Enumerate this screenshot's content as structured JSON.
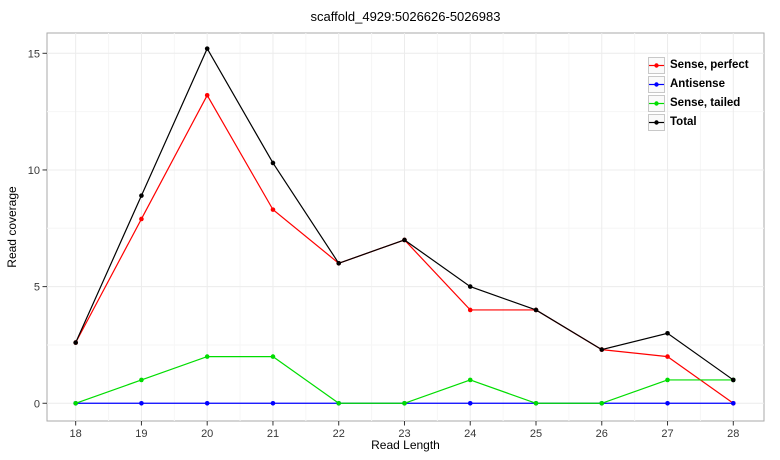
{
  "chart_data": {
    "type": "line",
    "title": "scaffold_4929:5026626-5026983",
    "xlabel": "Read Length",
    "ylabel": "Read coverage",
    "x": [
      18,
      19,
      20,
      21,
      22,
      23,
      24,
      25,
      26,
      27,
      28
    ],
    "xticks": [
      18,
      19,
      20,
      21,
      22,
      23,
      24,
      25,
      26,
      27,
      28
    ],
    "yticks": [
      0,
      5,
      10,
      15
    ],
    "xlim": [
      17.564,
      28.467
    ],
    "ylim": [
      -0.76,
      15.87
    ],
    "grid": "major-and-minor",
    "legend_position": "inside-top-right",
    "series": [
      {
        "name": "Sense, perfect",
        "color": "#ff0000",
        "values": [
          2.6,
          7.9,
          13.2,
          8.3,
          6.0,
          7.0,
          4.0,
          4.0,
          2.3,
          2.0,
          0.0
        ]
      },
      {
        "name": "Antisense",
        "color": "#0000ff",
        "values": [
          0,
          0,
          0,
          0,
          0,
          0,
          0,
          0,
          0,
          0,
          0
        ]
      },
      {
        "name": "Sense, tailed",
        "color": "#00dd00",
        "values": [
          0.0,
          1.0,
          2.0,
          2.0,
          0.0,
          0.0,
          1.0,
          0.0,
          0.0,
          1.0,
          1.0
        ]
      },
      {
        "name": "Total",
        "color": "#000000",
        "values": [
          2.6,
          8.9,
          15.2,
          10.3,
          6.0,
          7.0,
          5.0,
          4.0,
          2.3,
          3.0,
          1.0
        ]
      }
    ],
    "colors": {
      "grid_major": "#ececec",
      "grid_minor": "#f6f6f6",
      "panel_border": "#aaaaaa",
      "tick_mark": "#333333",
      "tick_text": "#383838",
      "background": "#ffffff"
    }
  }
}
